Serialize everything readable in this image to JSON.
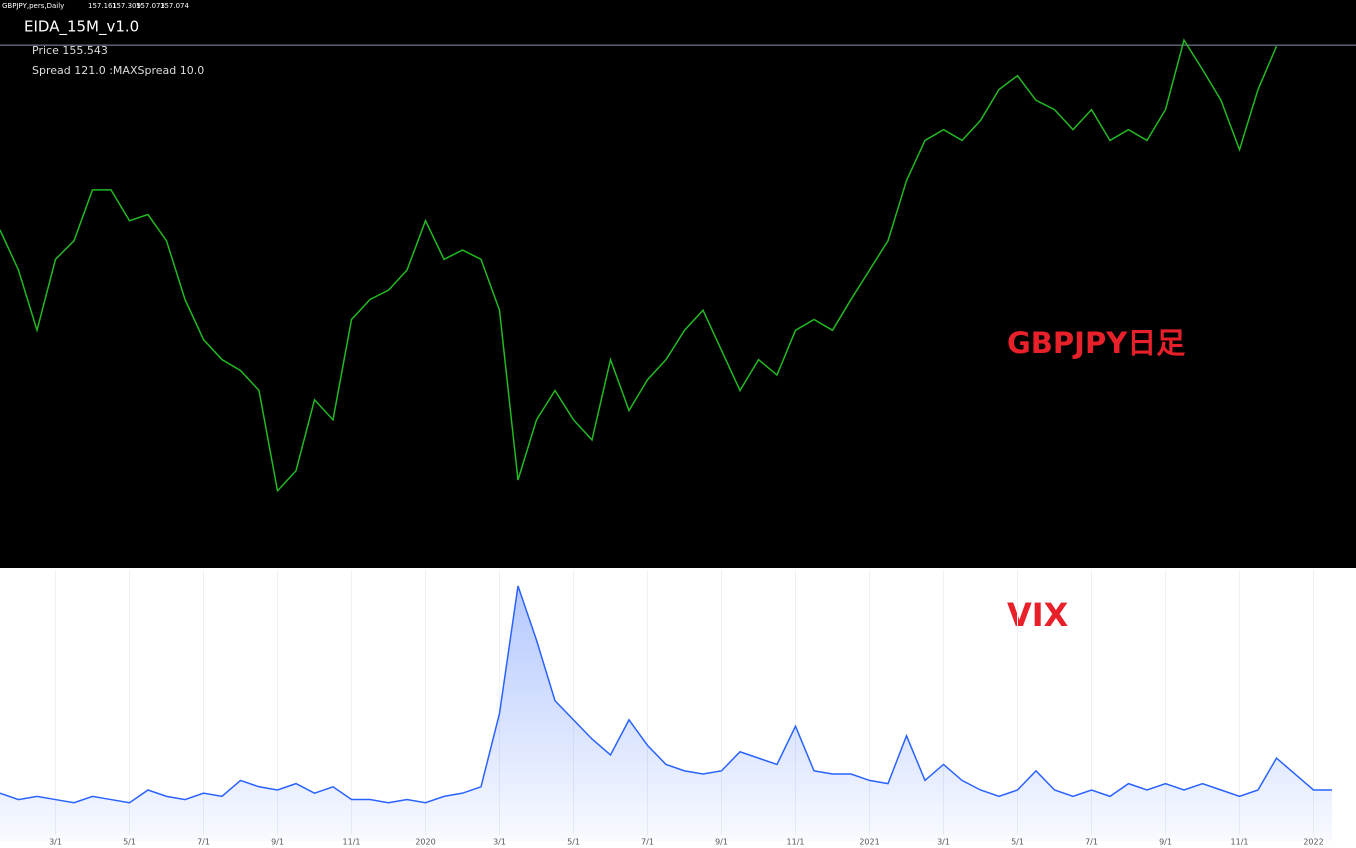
{
  "chart_data": [
    {
      "type": "line",
      "title": "GBPJPY,pers,Daily",
      "ohlc": [
        157.161,
        157.309,
        157.073,
        157.074
      ],
      "annotations": [
        "EIDA_15M_v1.0",
        "Price  155.543",
        "Spread  121.0  :MAXSpread  10.0",
        "GBPJPY日足"
      ],
      "color": "#22b922",
      "ylim": [
        123.2,
        160
      ],
      "values": [
        145.1,
        142.5,
        138.6,
        143.2,
        144.4,
        147.7,
        147.7,
        145.7,
        146.1,
        144.4,
        140.6,
        138.0,
        136.7,
        136.0,
        134.7,
        128.2,
        129.5,
        134.1,
        132.8,
        139.3,
        140.6,
        141.2,
        142.5,
        145.7,
        143.2,
        143.8,
        143.2,
        139.9,
        128.9,
        132.8,
        134.7,
        132.8,
        131.5,
        136.7,
        133.4,
        135.4,
        136.7,
        138.6,
        139.9,
        137.3,
        134.7,
        136.7,
        135.7,
        138.6,
        139.3,
        138.6,
        140.6,
        142.5,
        144.4,
        148.3,
        150.9,
        151.6,
        150.9,
        152.2,
        154.2,
        155.1,
        153.5,
        152.9,
        151.6,
        152.9,
        150.9,
        151.6,
        150.9,
        152.9,
        157.4,
        155.5,
        153.5,
        150.3,
        154.2,
        157.0,
        null,
        null,
        null
      ]
    },
    {
      "type": "area",
      "title": "VIX",
      "color": "#2962ff",
      "ylim": [
        0,
        85
      ],
      "categories": [
        null,
        null,
        null,
        "3/1",
        null,
        null,
        null,
        "5/1",
        null,
        null,
        null,
        "7/1",
        null,
        null,
        null,
        "9/1",
        null,
        null,
        null,
        "11/1",
        null,
        null,
        null,
        "2020",
        null,
        null,
        null,
        "3/1",
        null,
        null,
        null,
        "5/1",
        null,
        null,
        null,
        "7/1",
        null,
        null,
        null,
        "9/1",
        null,
        null,
        null,
        "11/1",
        null,
        null,
        null,
        "2021",
        null,
        null,
        null,
        "3/1",
        null,
        null,
        null,
        "5/1",
        null,
        null,
        null,
        "7/1",
        null,
        null,
        null,
        "9/1",
        null,
        null,
        null,
        "11/1",
        null,
        null,
        null,
        "2022",
        null
      ],
      "values": [
        15,
        13,
        14,
        13,
        12,
        14,
        13,
        12,
        16,
        14,
        13,
        15,
        14,
        19,
        17,
        16,
        18,
        15,
        17,
        13,
        13,
        12,
        13,
        12,
        14,
        15,
        17,
        40,
        80,
        63,
        44,
        38,
        32,
        27,
        38,
        30,
        24,
        22,
        21,
        22,
        28,
        26,
        24,
        36,
        22,
        21,
        21,
        19,
        18,
        33,
        19,
        24,
        19,
        16,
        14,
        16,
        22,
        16,
        14,
        16,
        14,
        18,
        16,
        18,
        16,
        18,
        16,
        14,
        16,
        26,
        21,
        16,
        16
      ]
    }
  ]
}
